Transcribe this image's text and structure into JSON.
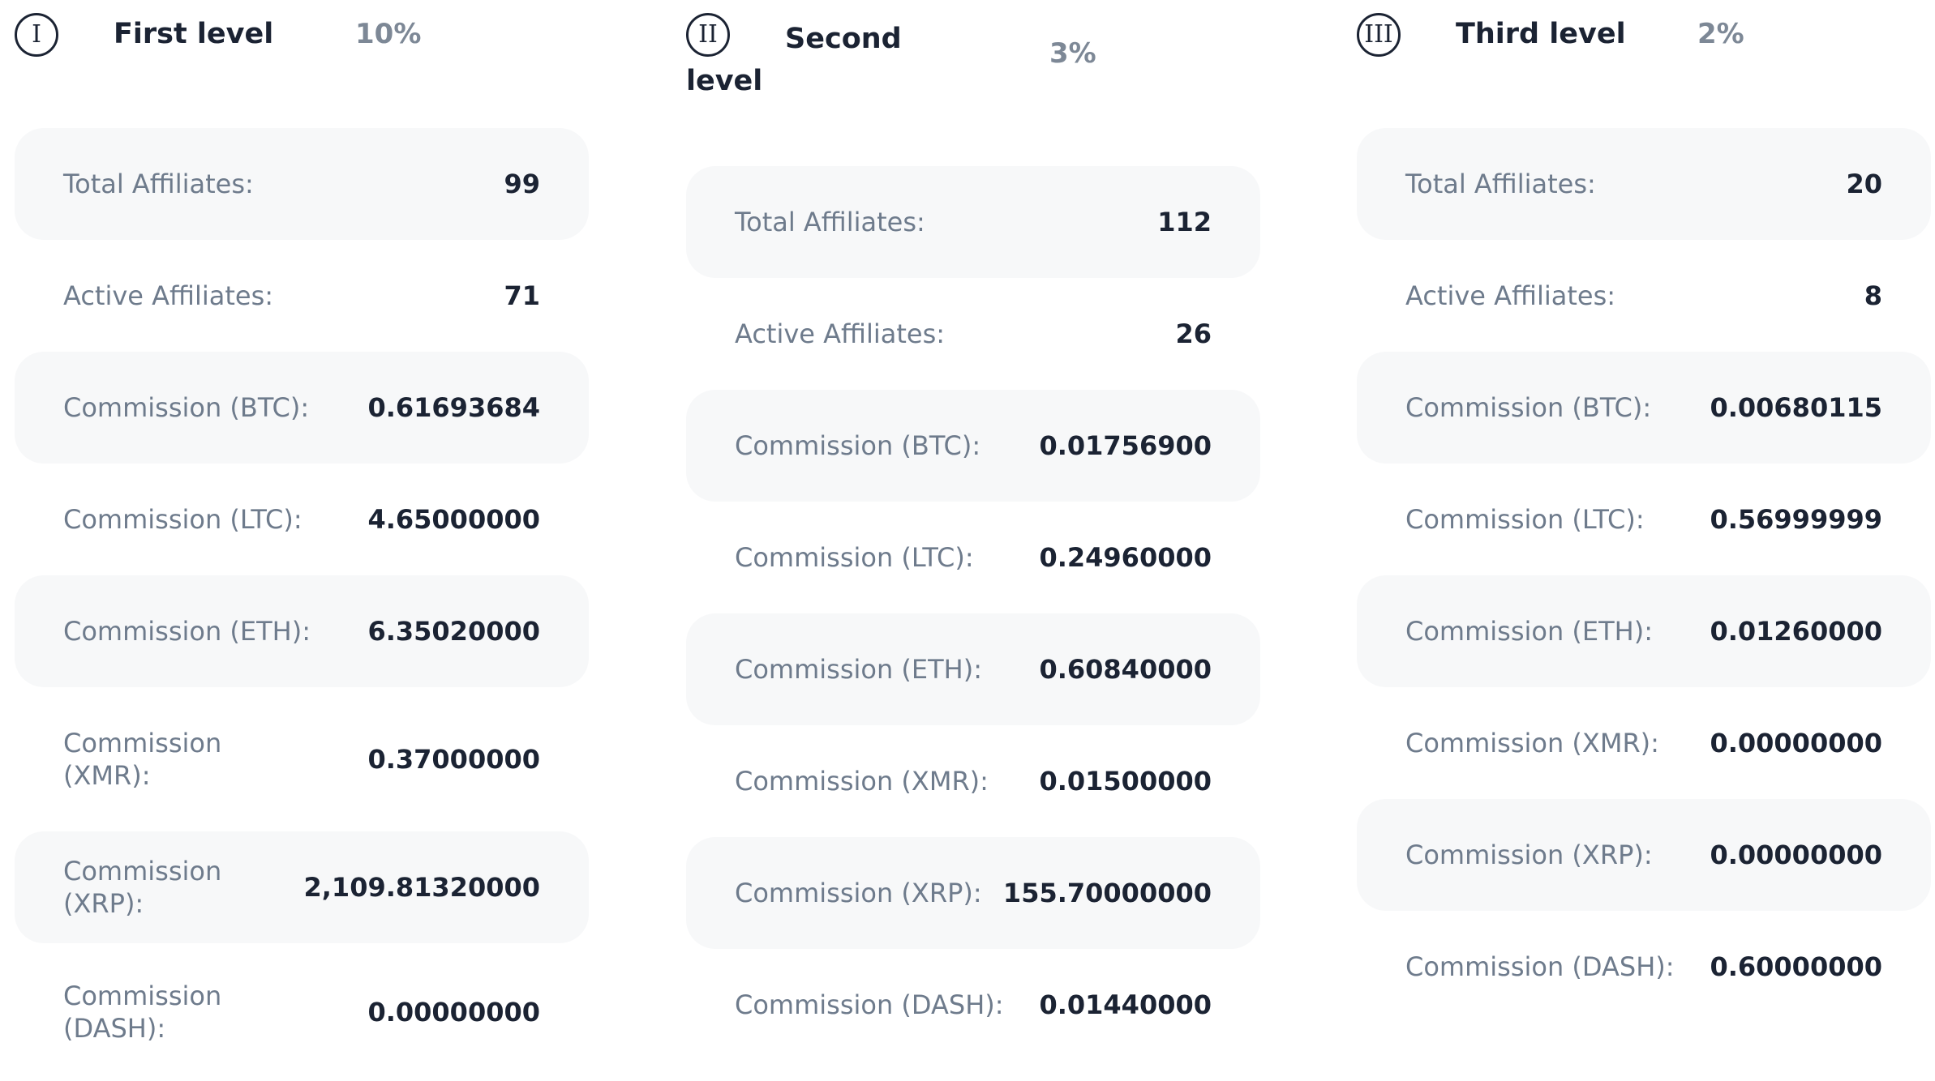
{
  "levels": [
    {
      "badge": "I",
      "title": "First level",
      "percent": "10%",
      "rows": [
        {
          "label": "Total Affiliates:",
          "value": "99"
        },
        {
          "label": "Active Affiliates:",
          "value": "71"
        },
        {
          "label": "Commission (BTC):",
          "value": "0.61693684"
        },
        {
          "label": "Commission (LTC):",
          "value": "4.65000000"
        },
        {
          "label": "Commission (ETH):",
          "value": "6.35020000"
        },
        {
          "label": "Commission (XMR):",
          "value": "0.37000000"
        },
        {
          "label": "Commission (XRP):",
          "value": "2,109.81320000"
        },
        {
          "label": "Commission (DASH):",
          "value": "0.00000000"
        }
      ]
    },
    {
      "badge": "II",
      "title": "Second level",
      "percent": "3%",
      "rows": [
        {
          "label": "Total Affiliates:",
          "value": "112"
        },
        {
          "label": "Active Affiliates:",
          "value": "26"
        },
        {
          "label": "Commission (BTC):",
          "value": "0.01756900"
        },
        {
          "label": "Commission (LTC):",
          "value": "0.24960000"
        },
        {
          "label": "Commission (ETH):",
          "value": "0.60840000"
        },
        {
          "label": "Commission (XMR):",
          "value": "0.01500000"
        },
        {
          "label": "Commission (XRP):",
          "value": "155.70000000"
        },
        {
          "label": "Commission (DASH):",
          "value": "0.01440000"
        }
      ]
    },
    {
      "badge": "III",
      "title": "Third level",
      "percent": "2%",
      "rows": [
        {
          "label": "Total Affiliates:",
          "value": "20"
        },
        {
          "label": "Active Affiliates:",
          "value": "8"
        },
        {
          "label": "Commission (BTC):",
          "value": "0.00680115"
        },
        {
          "label": "Commission (LTC):",
          "value": "0.56999999"
        },
        {
          "label": "Commission (ETH):",
          "value": "0.01260000"
        },
        {
          "label": "Commission (XMR):",
          "value": "0.00000000"
        },
        {
          "label": "Commission (XRP):",
          "value": "0.00000000"
        },
        {
          "label": "Commission (DASH):",
          "value": "0.60000000"
        }
      ]
    }
  ]
}
